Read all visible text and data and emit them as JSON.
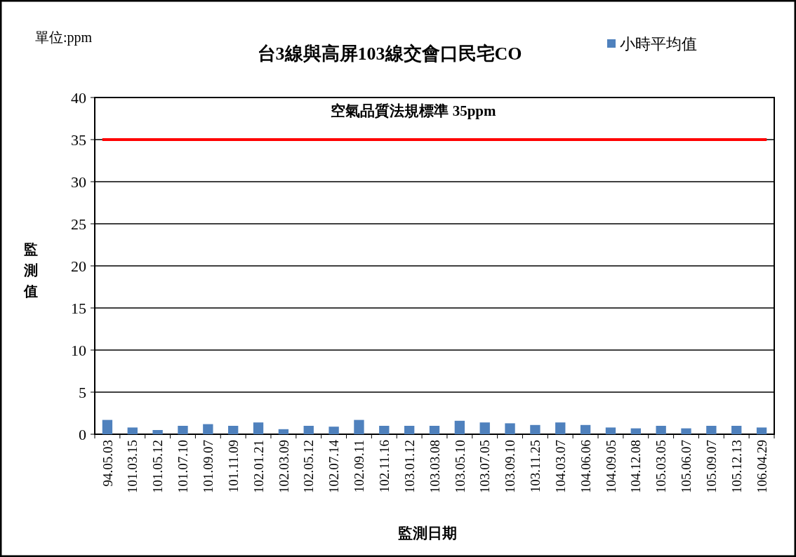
{
  "chart_data": {
    "type": "bar",
    "title": "台3線與高屏103線交會口民宅CO",
    "xlabel": "監測日期",
    "ylabel": "監測值",
    "annotations": [
      "單位:ppm"
    ],
    "categories": [
      "94.05.03",
      "101.03.15",
      "101.05.12",
      "101.07.10",
      "101.09.07",
      "101.11.09",
      "102.01.21",
      "102.03.09",
      "102.05.12",
      "102.07.14",
      "102.09.11",
      "102.11.16",
      "103.01.12",
      "103.03.08",
      "103.05.10",
      "103.07.05",
      "103.09.10",
      "103.11.25",
      "104.03.07",
      "104.06.06",
      "104.09.05",
      "104.12.08",
      "105.03.05",
      "105.06.07",
      "105.09.07",
      "105.12.13",
      "106.04.29"
    ],
    "series": [
      {
        "name": "小時平均值",
        "color": "#4f81bd",
        "values": [
          1.7,
          0.8,
          0.5,
          1.0,
          1.2,
          1.0,
          1.4,
          0.6,
          1.0,
          0.9,
          1.7,
          1.0,
          1.0,
          1.0,
          1.6,
          1.4,
          1.3,
          1.1,
          1.4,
          1.1,
          0.8,
          0.7,
          1.0,
          0.7,
          1.0,
          1.0,
          0.8
        ]
      }
    ],
    "ylim": [
      0,
      40
    ],
    "yticks": [
      0,
      5,
      10,
      15,
      20,
      25,
      30,
      35,
      40
    ],
    "grid": "y",
    "legend": "top right",
    "ref_lines": [
      {
        "axis": "y",
        "value": 35,
        "label": "空氣品質法規標準 35ppm",
        "color": "#ff0000"
      }
    ]
  }
}
